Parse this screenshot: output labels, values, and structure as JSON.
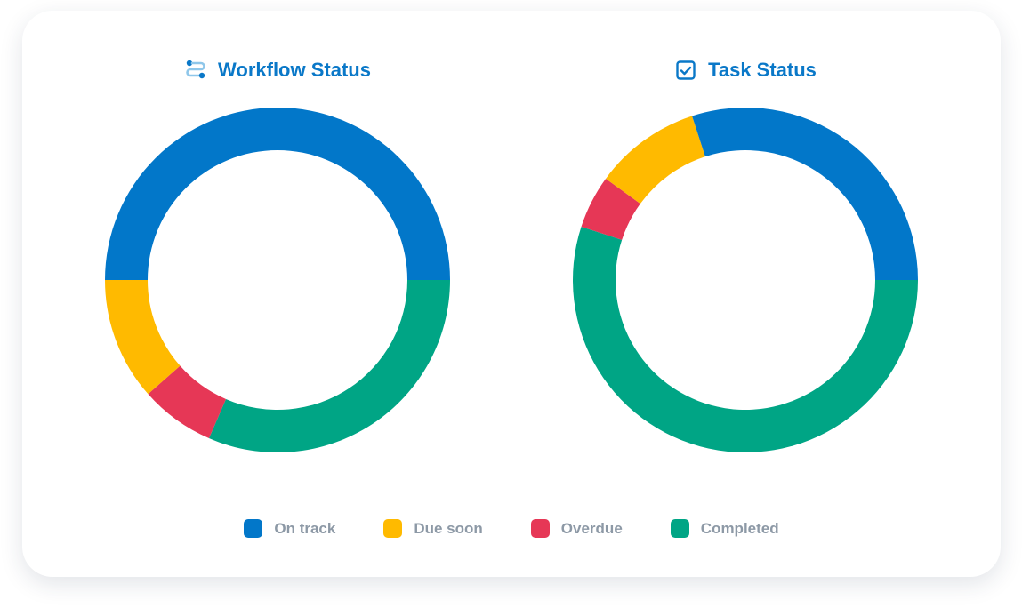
{
  "legend": [
    {
      "key": "on_track",
      "label": "On track",
      "color": "#0277C9"
    },
    {
      "key": "due_soon",
      "label": "Due soon",
      "color": "#FFBA00"
    },
    {
      "key": "overdue",
      "label": "Overdue",
      "color": "#E63756"
    },
    {
      "key": "completed",
      "label": "Completed",
      "color": "#00A585"
    }
  ],
  "chart_data": [
    {
      "type": "pie",
      "style": "donut",
      "title": "Workflow Status",
      "title_icon": "workflow-icon",
      "categories": [
        "Completed",
        "Overdue",
        "Due soon",
        "On track"
      ],
      "values": [
        31.5,
        7,
        11.5,
        50
      ],
      "colors": [
        "#00A585",
        "#E63756",
        "#FFBA00",
        "#0277C9"
      ],
      "legend_position": "bottom"
    },
    {
      "type": "pie",
      "style": "donut",
      "title": "Task Status",
      "title_icon": "checkbox-icon",
      "categories": [
        "Completed",
        "Overdue",
        "Due soon",
        "On track"
      ],
      "values": [
        55,
        5,
        10,
        30
      ],
      "colors": [
        "#00A585",
        "#E63756",
        "#FFBA00",
        "#0277C9"
      ],
      "legend_position": "bottom"
    }
  ]
}
